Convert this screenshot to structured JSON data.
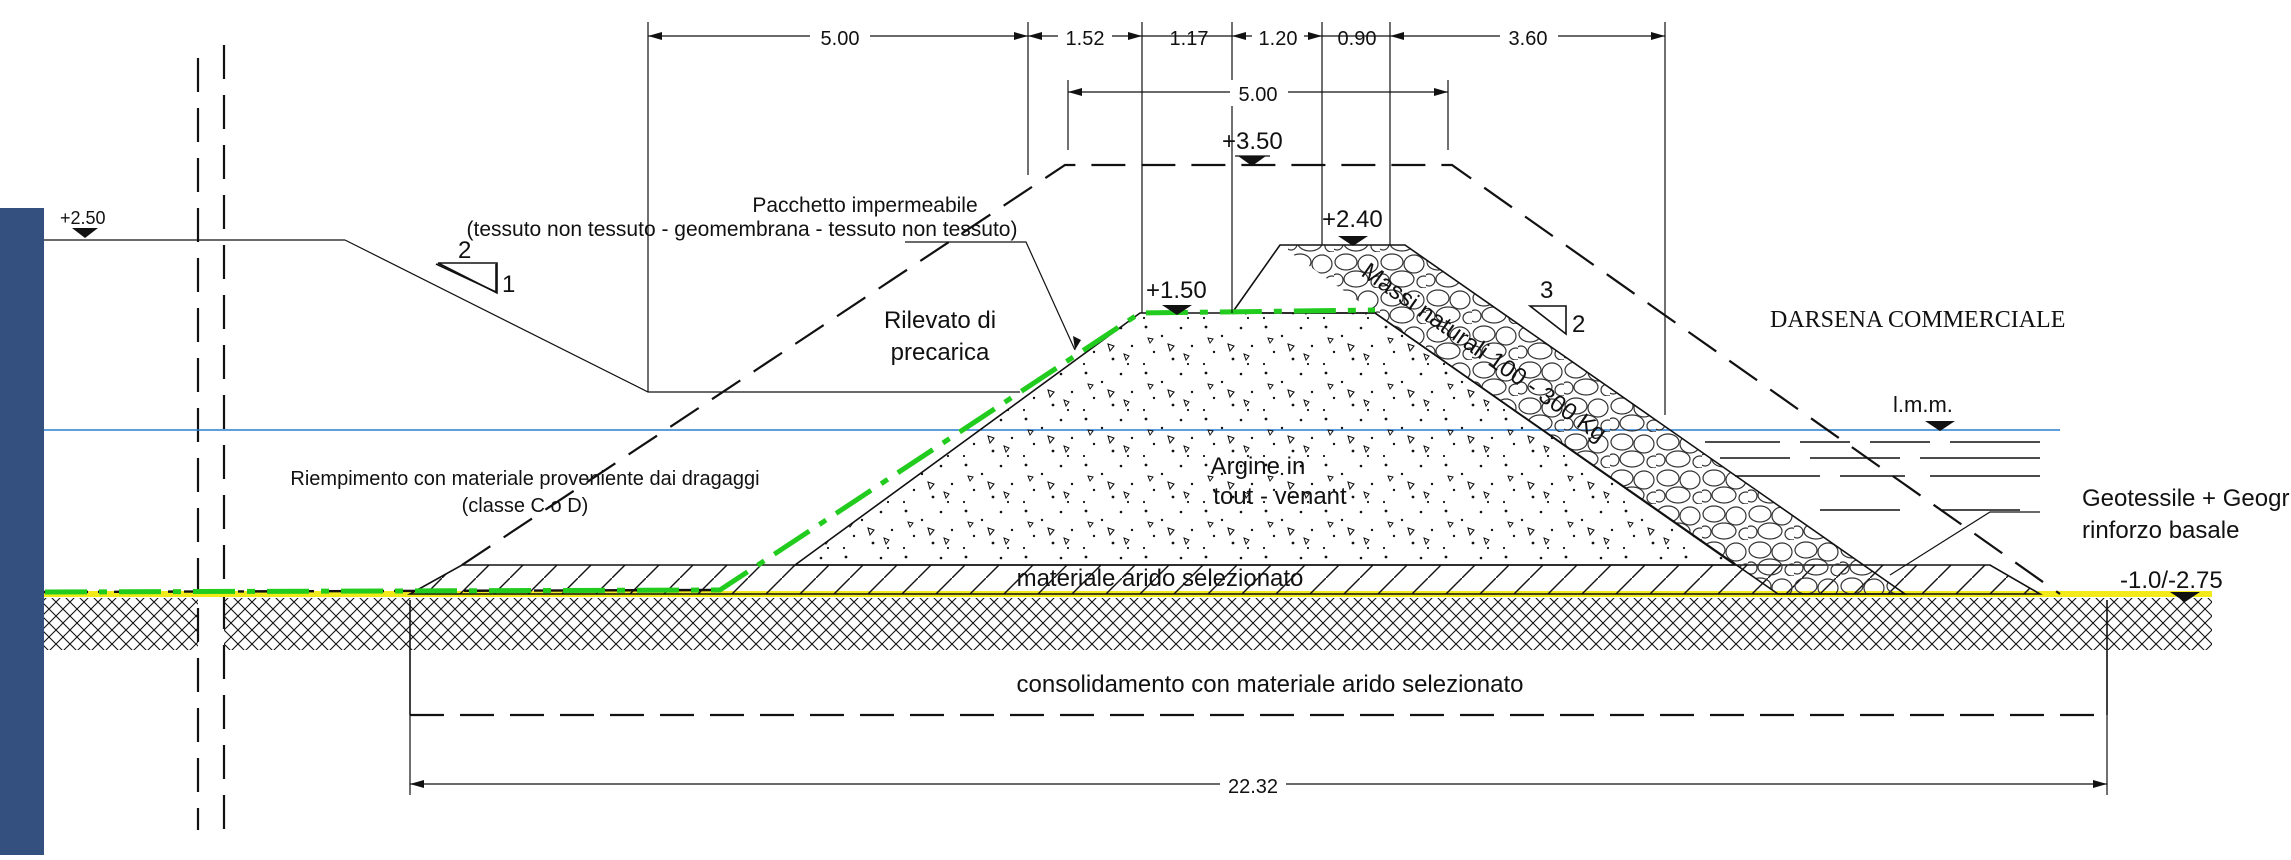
{
  "dimensions": {
    "top": [
      "5.00",
      "1.52",
      "1.17",
      "1.20",
      "0.90",
      "3.60"
    ],
    "crest": "5.00",
    "base": "22.32"
  },
  "elevations": {
    "left_water": "+2.50",
    "preload_top": "+3.50",
    "armour_top": "+2.40",
    "core_top": "+1.50",
    "bottom": "-1.0/-2.75",
    "sea_level": "l.m.m."
  },
  "slopes": {
    "left": {
      "v": "2",
      "h": "1"
    },
    "right": {
      "v": "3",
      "h": "2"
    }
  },
  "labels": {
    "impermeable_title": "Pacchetto impermeabile",
    "impermeable_detail": "(tessuto non tessuto - geomembrana - tessuto non tessuto)",
    "preload_line1": "Rilevato di",
    "preload_line2": "precarica",
    "fill_line1": "Riempimento con materiale proveniente dai dragaggi",
    "fill_line2": "(classe  C o D)",
    "core_line1": "Argine in",
    "core_line2": "tout - venant",
    "armour": "Massi naturali 100 - 300 Kg",
    "base_layer": "materiale arido selezionato",
    "consolidation": "consolidamento con materiale arido selezionato",
    "geotextile_line1": "Geotessile + Geogriglia di",
    "geotextile_line2": "rinforzo basale",
    "harbour": "DARSENA COMMERCIALE"
  },
  "colors": {
    "impermeable_line": "#22cc1e",
    "water_line": "#2a7fd4",
    "geotextile_line": "#f2ea1a",
    "wall": "#33507e"
  }
}
